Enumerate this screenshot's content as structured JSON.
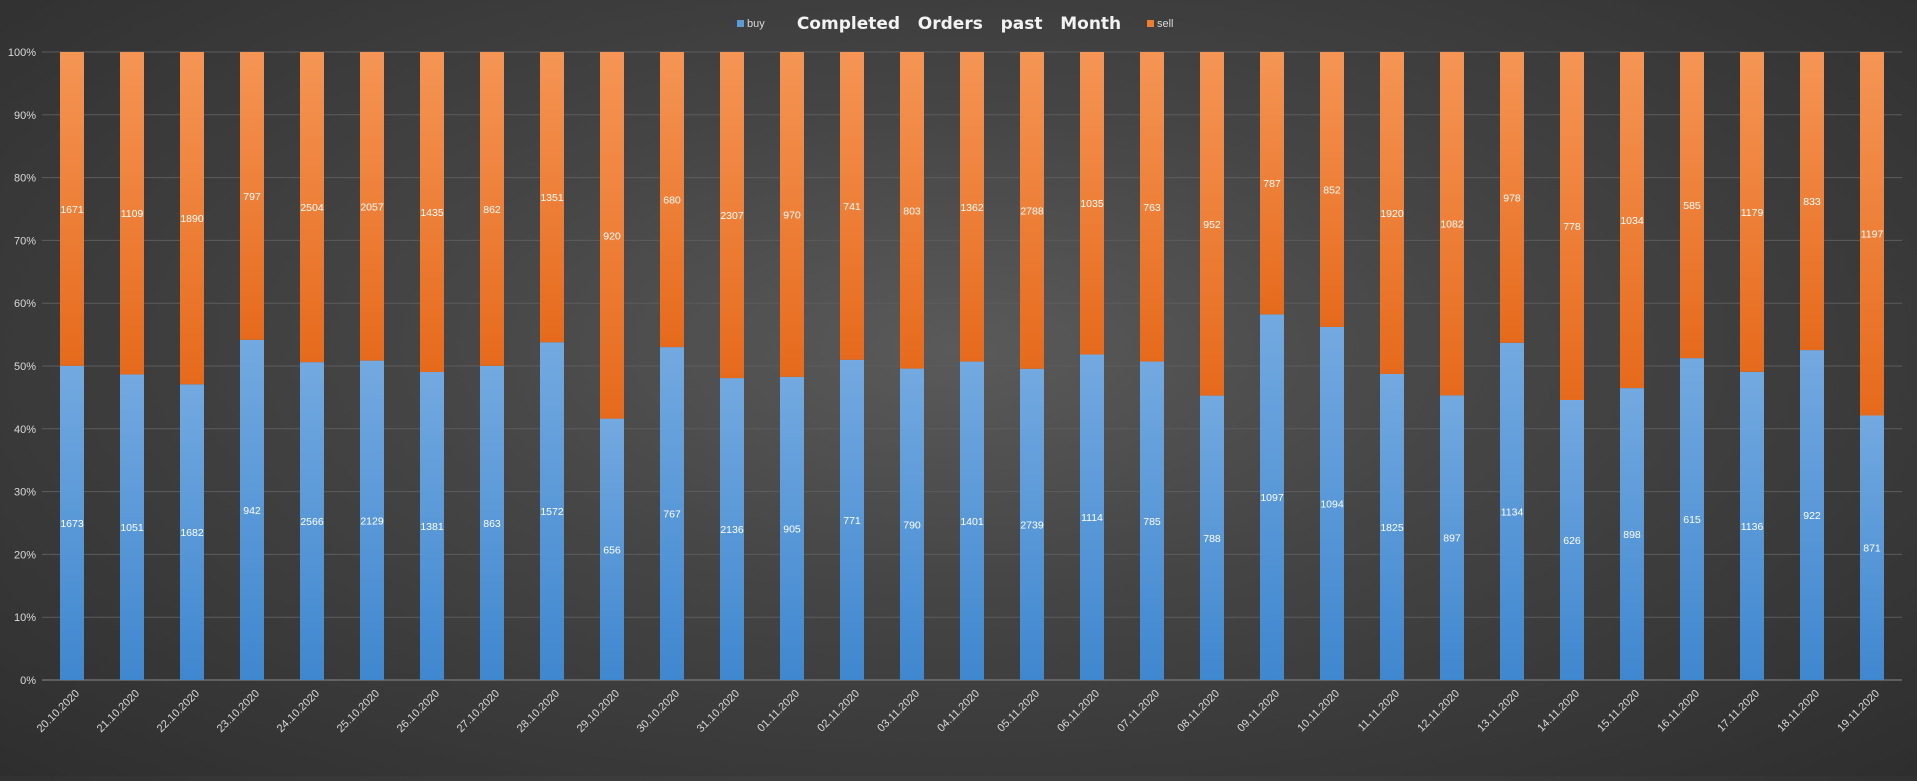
{
  "chart_data": {
    "type": "bar",
    "stacked": "percent",
    "title": "Completed   Orders   past   Month",
    "legend_position": "top",
    "grid": true,
    "ylim": [
      0,
      100
    ],
    "y_ticks": [
      "0%",
      "10%",
      "20%",
      "30%",
      "40%",
      "50%",
      "60%",
      "70%",
      "80%",
      "90%",
      "100%"
    ],
    "categories": [
      "20.10.2020",
      "21.10.2020",
      "22.10.2020",
      "23.10.2020",
      "24.10.2020",
      "25.10.2020",
      "26.10.2020",
      "27.10.2020",
      "28.10.2020",
      "29.10.2020",
      "30.10.2020",
      "31.10.2020",
      "01.11.2020",
      "02.11.2020",
      "03.11.2020",
      "04.11.2020",
      "05.11.2020",
      "06.11.2020",
      "07.11.2020",
      "08.11.2020",
      "09.11.2020",
      "10.11.2020",
      "11.11.2020",
      "12.11.2020",
      "13.11.2020",
      "14.11.2020",
      "15.11.2020",
      "16.11.2020",
      "17.11.2020",
      "18.11.2020",
      "19.11.2020"
    ],
    "series": [
      {
        "name": "buy",
        "color": "#5b9bd5",
        "values": [
          1673,
          1051,
          1682,
          942,
          2566,
          2129,
          1381,
          863,
          1572,
          656,
          767,
          2136,
          905,
          771,
          790,
          1401,
          2739,
          1114,
          785,
          788,
          1097,
          1094,
          1825,
          897,
          1134,
          626,
          898,
          615,
          1136,
          922,
          871
        ]
      },
      {
        "name": "sell",
        "color": "#ed7d31",
        "values": [
          1671,
          1109,
          1890,
          797,
          2504,
          2057,
          1435,
          862,
          1351,
          920,
          680,
          2307,
          970,
          741,
          803,
          1362,
          2788,
          1035,
          763,
          952,
          787,
          852,
          1920,
          1082,
          978,
          778,
          1034,
          585,
          1179,
          833,
          1197
        ]
      }
    ]
  }
}
